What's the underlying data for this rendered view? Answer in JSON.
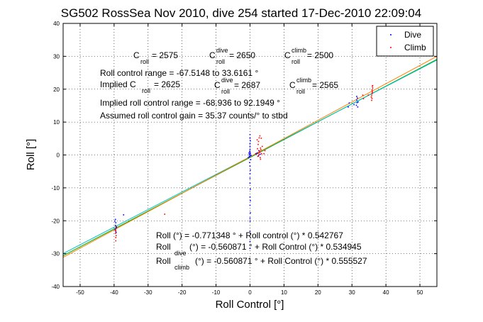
{
  "chart_data": {
    "type": "scatter",
    "title": "SG502 RossSea Nov 2010, dive 254 started 17-Dec-2010 22:09:04",
    "xlabel": "Roll Control [°]",
    "ylabel": "Roll [°]",
    "xlim": [
      -55,
      55
    ],
    "ylim": [
      -40,
      40
    ],
    "xticks": [
      "-50",
      "-40",
      "-30",
      "-20",
      "-10",
      "0",
      "10",
      "20",
      "30",
      "40",
      "50"
    ],
    "yticks": [
      "-40",
      "-30",
      "-20",
      "-10",
      "0",
      "10",
      "20",
      "30",
      "40"
    ],
    "grid": true,
    "legend_position": "top-right",
    "legend": [
      {
        "label": "Dive",
        "color": "#0000ff"
      },
      {
        "label": "Climb",
        "color": "#ff0000"
      }
    ],
    "series": [
      {
        "name": "Dive",
        "color": "#0000ff",
        "points": [
          [
            -39.5,
            -20.6
          ],
          [
            -39.6,
            -21.4
          ],
          [
            -39.4,
            -22.1
          ],
          [
            -39.7,
            -22.7
          ],
          [
            -39.5,
            -23.2
          ],
          [
            -39.3,
            -21.9
          ],
          [
            -39.8,
            -20.1
          ],
          [
            -39.6,
            -19.6
          ],
          [
            -39.4,
            -23.6
          ],
          [
            -39.5,
            -22.4
          ],
          [
            -37.2,
            -18.2
          ],
          [
            -0.3,
            0.6
          ],
          [
            -0.2,
            -0.4
          ],
          [
            0.0,
            0.3
          ],
          [
            0.1,
            -0.2
          ],
          [
            -0.1,
            1.1
          ],
          [
            0.2,
            -1.4
          ],
          [
            -0.2,
            0.1
          ],
          [
            0.1,
            0.5
          ],
          [
            -0.5,
            -0.8
          ],
          [
            0.3,
            -0.1
          ],
          [
            0.0,
            0.9
          ],
          [
            -0.1,
            -0.6
          ],
          [
            0.0,
            1.6
          ],
          [
            0.0,
            2.5
          ],
          [
            0.0,
            3.4
          ],
          [
            0.1,
            4.3
          ],
          [
            0.0,
            5.1
          ],
          [
            0.0,
            6.2
          ],
          [
            -0.1,
            -2.3
          ],
          [
            0.0,
            -3.4
          ],
          [
            0.1,
            -4.6
          ],
          [
            0.0,
            -5.7
          ],
          [
            0.0,
            -7.1
          ],
          [
            0.0,
            -8.6
          ],
          [
            0.1,
            -10.4
          ],
          [
            0.0,
            -12.8
          ],
          [
            0.0,
            -15.3
          ],
          [
            0.1,
            -17.6
          ],
          [
            0.0,
            -20.1
          ],
          [
            0.0,
            -23.2
          ],
          [
            0.0,
            -26.3
          ],
          [
            0.0,
            -28.4
          ],
          [
            0.1,
            -13.9
          ],
          [
            0.0,
            -19.2
          ],
          [
            2.1,
            0.6
          ],
          [
            2.6,
            1.3
          ],
          [
            3.0,
            0.2
          ],
          [
            2.5,
            -0.3
          ],
          [
            1.7,
            0.4
          ],
          [
            31.4,
            16.7
          ],
          [
            31.6,
            17.3
          ],
          [
            31.5,
            15.9
          ],
          [
            31.3,
            15.1
          ],
          [
            31.7,
            14.6
          ],
          [
            31.4,
            17.8
          ],
          [
            30.6,
            15.3
          ],
          [
            28.9,
            14.6
          ],
          [
            31.8,
            16.1
          ],
          [
            29.2,
            15.8
          ]
        ]
      },
      {
        "name": "Climb",
        "color": "#ff0000",
        "points": [
          [
            -39.4,
            -22.4
          ],
          [
            -39.5,
            -23.1
          ],
          [
            -39.6,
            -23.8
          ],
          [
            -39.4,
            -24.5
          ],
          [
            -39.5,
            -25.1
          ],
          [
            -39.6,
            -22.9
          ],
          [
            -39.4,
            -21.8
          ],
          [
            -39.5,
            -26.1
          ],
          [
            -25.1,
            -18.0
          ],
          [
            2.6,
            0.1
          ],
          [
            2.9,
            0.8
          ],
          [
            3.2,
            1.6
          ],
          [
            2.3,
            -0.4
          ],
          [
            2.8,
            1.2
          ],
          [
            3.4,
            0.4
          ],
          [
            2.5,
            0.6
          ],
          [
            3.0,
            -0.8
          ],
          [
            1.9,
            0.3
          ],
          [
            4.4,
            1.3
          ],
          [
            3.1,
            2.1
          ],
          [
            2.4,
            3.2
          ],
          [
            2.5,
            4.1
          ],
          [
            2.7,
            5.2
          ],
          [
            2.9,
            5.8
          ],
          [
            3.3,
            5.1
          ],
          [
            2.1,
            4.6
          ],
          [
            3.1,
            -1.3
          ],
          [
            4.1,
            0.4
          ],
          [
            3.6,
            2.6
          ],
          [
            2.2,
            1.9
          ],
          [
            35.9,
            17.2
          ],
          [
            35.8,
            18.1
          ],
          [
            36.0,
            19.0
          ],
          [
            35.9,
            19.8
          ],
          [
            36.1,
            20.4
          ],
          [
            35.8,
            16.6
          ],
          [
            35.9,
            18.6
          ],
          [
            36.0,
            20.9
          ],
          [
            35.7,
            17.6
          ],
          [
            36.0,
            19.4
          ],
          [
            34.8,
            18.2
          ],
          [
            36.1,
            21.1
          ],
          [
            33.4,
            17.1
          ],
          [
            33.2,
            18.2
          ]
        ]
      }
    ],
    "fit_lines": [
      {
        "label": "all",
        "color": "#00aa00",
        "intercept": -0.771348,
        "slope": 0.542767
      },
      {
        "label": "dive",
        "color": "#00c0c0",
        "intercept": -0.560871,
        "slope": 0.534945
      },
      {
        "label": "climb",
        "color": "#ff7f00",
        "intercept": -0.560871,
        "slope": 0.555527
      }
    ],
    "annotations": {
      "c_roll": {
        "main": "C",
        "sub": "roll",
        "value": " = 2575"
      },
      "c_roll_dive": {
        "main": "C",
        "sup": "dive",
        "sub": "roll",
        "value": " = 2650"
      },
      "c_roll_climb": {
        "main": "C",
        "sup": "climb",
        "sub": "roll",
        "value": " = 2500"
      },
      "control_range": "Roll control range = -67.5148 to 33.6161 °",
      "implied_prefix": "Implied C",
      "implied_sub": "roll",
      "implied_value": " = 2625",
      "implied_dive": {
        "main": "C",
        "sup": "dive",
        "sub": "roll",
        "value": " = 2687"
      },
      "implied_climb": {
        "main": "C",
        "sup": "climb",
        "sub": "roll",
        "value": " = 2565"
      },
      "implied_range": "Implied roll control range = -68.936 to 92.1949 °",
      "gain": "Assumed roll control gain = 35.37 counts/° to stbd",
      "fit_all": "Roll (°) = -0.771348 ° + Roll control (°) * 0.542767",
      "fit_dive": {
        "main": "Roll",
        "sub": "dive",
        "rest": " (°) = -0.560871 ° + Roll Control (°) * 0.534945"
      },
      "fit_climb": {
        "main": "Roll",
        "sub": "climb",
        "rest": " (°) = -0.560871 ° + Roll Control (°) * 0.555527"
      }
    }
  }
}
